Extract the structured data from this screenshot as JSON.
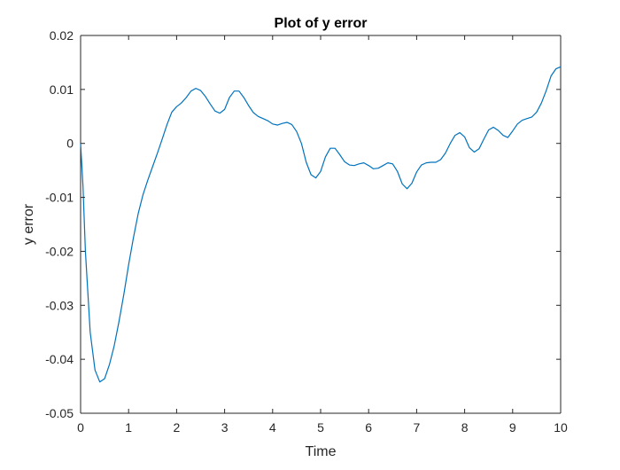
{
  "chart_data": {
    "type": "line",
    "title": "Plot of y error",
    "xlabel": "Time",
    "ylabel": "y error",
    "xlim": [
      0,
      10
    ],
    "ylim": [
      -0.05,
      0.02
    ],
    "xticks": [
      0,
      1,
      2,
      3,
      4,
      5,
      6,
      7,
      8,
      9,
      10
    ],
    "xtick_labels": [
      "0",
      "1",
      "2",
      "3",
      "4",
      "5",
      "6",
      "7",
      "8",
      "9",
      "10"
    ],
    "yticks": [
      0.02,
      0.01,
      0,
      -0.01,
      -0.02,
      -0.03,
      -0.04,
      -0.05
    ],
    "ytick_labels": [
      "0.02",
      "0.01",
      "0",
      "-0.01",
      "-0.02",
      "-0.03",
      "-0.04",
      "-0.05"
    ],
    "grid": false,
    "line_color": "#0072BD",
    "series": [
      {
        "x": [
          0,
          0.05,
          0.1,
          0.2,
          0.3,
          0.4,
          0.5,
          0.6,
          0.7,
          0.8,
          0.9,
          1.0,
          1.1,
          1.2,
          1.3,
          1.4,
          1.5,
          1.6,
          1.7,
          1.8,
          1.9,
          2.0,
          2.1,
          2.2,
          2.3,
          2.4,
          2.5,
          2.6,
          2.7,
          2.8,
          2.9,
          3.0,
          3.1,
          3.2,
          3.3,
          3.4,
          3.5,
          3.6,
          3.7,
          3.8,
          3.9,
          4.0,
          4.1,
          4.2,
          4.3,
          4.4,
          4.5,
          4.6,
          4.7,
          4.8,
          4.9,
          5.0,
          5.1,
          5.2,
          5.3,
          5.4,
          5.5,
          5.6,
          5.7,
          5.8,
          5.9,
          6.0,
          6.1,
          6.2,
          6.3,
          6.4,
          6.5,
          6.6,
          6.7,
          6.8,
          6.9,
          7.0,
          7.1,
          7.2,
          7.3,
          7.4,
          7.5,
          7.6,
          7.7,
          7.8,
          7.9,
          8.0,
          8.1,
          8.2,
          8.3,
          8.4,
          8.5,
          8.6,
          8.7,
          8.8,
          8.9,
          9.0,
          9.1,
          9.2,
          9.3,
          9.4,
          9.5,
          9.6,
          9.7,
          9.8,
          9.9,
          10.0
        ],
        "y": [
          0,
          -0.008,
          -0.02,
          -0.035,
          -0.042,
          -0.0442,
          -0.0436,
          -0.041,
          -0.0375,
          -0.033,
          -0.028,
          -0.0225,
          -0.0175,
          -0.013,
          -0.0095,
          -0.0068,
          -0.0043,
          -0.0018,
          0.0008,
          0.0035,
          0.0058,
          0.0068,
          0.0075,
          0.0085,
          0.0097,
          0.0102,
          0.0098,
          0.0087,
          0.0073,
          0.006,
          0.0056,
          0.0063,
          0.0085,
          0.0097,
          0.0097,
          0.0085,
          0.007,
          0.0057,
          0.005,
          0.0046,
          0.0042,
          0.0036,
          0.0034,
          0.0037,
          0.0039,
          0.0035,
          0.0022,
          0.0,
          -0.0035,
          -0.0058,
          -0.0064,
          -0.0052,
          -0.0025,
          -0.0009,
          -0.0009,
          -0.0021,
          -0.0034,
          -0.004,
          -0.0041,
          -0.0038,
          -0.0036,
          -0.0041,
          -0.0047,
          -0.0046,
          -0.0041,
          -0.0036,
          -0.0038,
          -0.0052,
          -0.0075,
          -0.0084,
          -0.0074,
          -0.0053,
          -0.004,
          -0.0036,
          -0.0035,
          -0.0035,
          -0.003,
          -0.0018,
          0.0,
          0.0015,
          0.002,
          0.0012,
          -0.0008,
          -0.0016,
          -0.001,
          0.0008,
          0.0025,
          0.003,
          0.0024,
          0.0015,
          0.0011,
          0.0023,
          0.0036,
          0.0043,
          0.0046,
          0.0049,
          0.0058,
          0.0075,
          0.0098,
          0.0125,
          0.0138,
          0.0142
        ]
      }
    ]
  }
}
